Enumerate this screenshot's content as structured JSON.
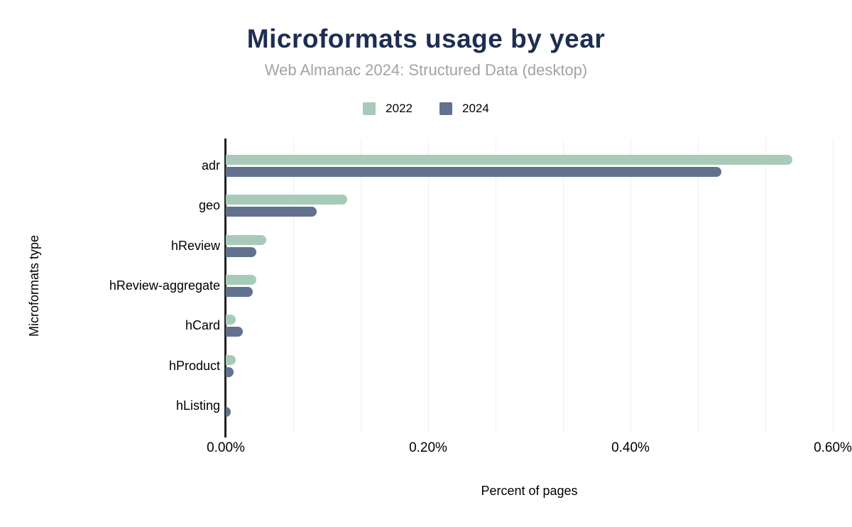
{
  "chart_data": {
    "type": "bar",
    "orientation": "horizontal",
    "title": "Microformats usage by year",
    "subtitle": "Web Almanac 2024: Structured Data (desktop)",
    "xlabel": "Percent of pages",
    "ylabel": "Microformats type",
    "categories": [
      "adr",
      "geo",
      "hReview",
      "hReview-aggregate",
      "hCard",
      "hProduct",
      "hListing"
    ],
    "series": [
      {
        "name": "2022",
        "color": "#a8cbb9",
        "values": [
          0.56,
          0.12,
          0.04,
          0.03,
          0.01,
          0.01,
          0.0
        ]
      },
      {
        "name": "2024",
        "color": "#62718e",
        "values": [
          0.49,
          0.09,
          0.03,
          0.027,
          0.017,
          0.008,
          0.005
        ]
      }
    ],
    "unit": "%",
    "xlim": [
      0,
      0.6
    ],
    "x_ticks": [
      {
        "value": 0.0,
        "label": "0.00%"
      },
      {
        "value": 0.2,
        "label": "0.20%"
      },
      {
        "value": 0.4,
        "label": "0.40%"
      },
      {
        "value": 0.6,
        "label": "0.60%"
      }
    ],
    "gridline_count": 9,
    "grid": true,
    "legend_position": "top"
  },
  "colors": {
    "title": "#1e2d51",
    "subtitle": "#a3a3a3",
    "axis_line": "#212121",
    "gridline": "#efefef",
    "text": "#000000",
    "background": "#ffffff"
  }
}
